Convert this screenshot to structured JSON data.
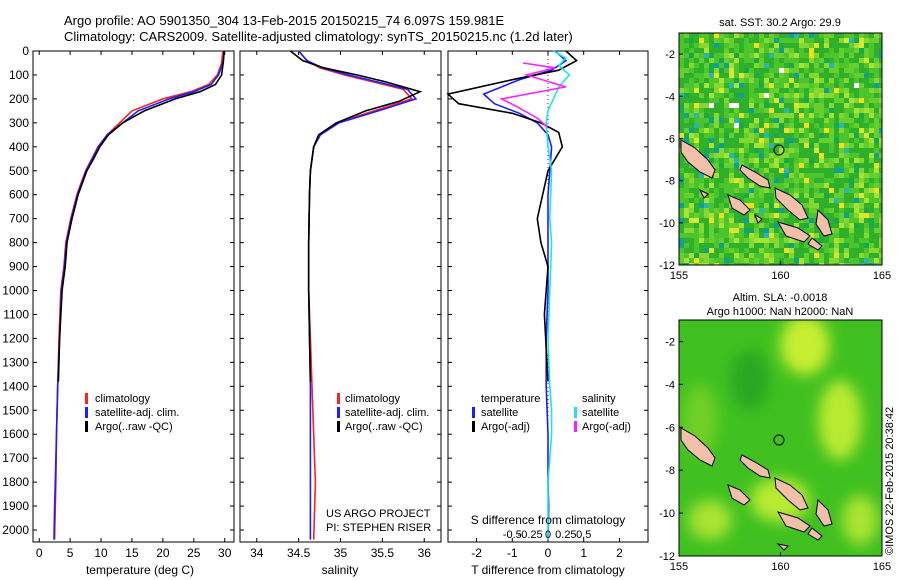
{
  "header": {
    "line1": "Argo profile: AO 5901350_304 13-Feb-2015 20150215_74 6.097S 159.981E",
    "line2": "Climatology: CARS2009. Satellite-adjusted climatology: synTS_20150215.nc (1.2d later)"
  },
  "colors": {
    "climatology": "#ff2020",
    "satellite": "#1c1cff",
    "argo": "#000000",
    "cyan": "#19e6f0",
    "magenta": "#ff20ff",
    "land": "#f2c0a8"
  },
  "chart_data": [
    {
      "id": "temperature",
      "type": "line",
      "xlabel": "temperature (deg C)",
      "ylabel": "",
      "xlim": [
        -1,
        31.5
      ],
      "ylim": [
        2050,
        0
      ],
      "xticks": [
        0,
        5,
        10,
        15,
        20,
        25,
        30
      ],
      "yticks": [
        0,
        100,
        200,
        300,
        400,
        500,
        600,
        700,
        800,
        900,
        1000,
        1100,
        1200,
        1300,
        1400,
        1500,
        1600,
        1700,
        1800,
        1900,
        2000
      ],
      "legend": [
        "climatology",
        "satellite-adj. clim.",
        "Argo(..raw -QC)"
      ],
      "legend_position": "lower-center",
      "series": [
        {
          "name": "climatology",
          "color": "red",
          "x": [
            29.7,
            29.5,
            28.8,
            27.4,
            24.5,
            20,
            15,
            13,
            11,
            9.5,
            8.5,
            7.5,
            6.8,
            6.1,
            5.6,
            5.1,
            4.7,
            4.3,
            4,
            3.5,
            3.2,
            3,
            2.8,
            2.7,
            2.6,
            2.5
          ],
          "y": [
            0,
            50,
            100,
            140,
            170,
            200,
            250,
            300,
            350,
            400,
            450,
            500,
            550,
            600,
            650,
            700,
            750,
            800,
            900,
            1000,
            1200,
            1400,
            1600,
            1800,
            1900,
            2040
          ]
        },
        {
          "name": "satellite",
          "color": "blue",
          "x": [
            29.9,
            29.7,
            29,
            27.8,
            25,
            21,
            16,
            13.5,
            11,
            9.6,
            8.6,
            7.6,
            6.9,
            6.2,
            5.7,
            5.2,
            4.8,
            4.4,
            4.1,
            3.6,
            3.3,
            3,
            2.8,
            2.6,
            2.5,
            2.4
          ],
          "y": [
            0,
            50,
            100,
            140,
            170,
            200,
            250,
            300,
            350,
            400,
            450,
            500,
            550,
            600,
            650,
            700,
            750,
            800,
            900,
            1000,
            1200,
            1400,
            1600,
            1800,
            1900,
            2040
          ]
        },
        {
          "name": "argo",
          "color": "black",
          "x": [
            29.9,
            29.8,
            29.5,
            28.5,
            26,
            22,
            17,
            13.5,
            11.2,
            9.8,
            8.8,
            7.7,
            7,
            6.3,
            5.8,
            5.3,
            4.9,
            4.5,
            4.2,
            3.7,
            3.3,
            3.1
          ],
          "y": [
            0,
            40,
            100,
            140,
            170,
            200,
            250,
            300,
            350,
            400,
            450,
            500,
            550,
            600,
            650,
            700,
            750,
            800,
            900,
            1000,
            1200,
            1380
          ]
        }
      ]
    },
    {
      "id": "salinity",
      "type": "line",
      "xlabel": "salinity",
      "ylabel": "",
      "xlim": [
        33.8,
        36.2
      ],
      "ylim": [
        2050,
        0
      ],
      "xticks": [
        34,
        34.5,
        35,
        35.5,
        36
      ],
      "legend": [
        "climatology",
        "satellite-adj. clim.",
        "Argo(..raw -QC)"
      ],
      "legend_position": "lower-right",
      "annotation": [
        "US ARGO PROJECT",
        "PI: STEPHEN RISER"
      ],
      "series": [
        {
          "name": "climatology",
          "color": "red",
          "x": [
            34.5,
            34.6,
            34.75,
            35.05,
            35.4,
            35.75,
            35.85,
            35.4,
            34.95,
            34.75,
            34.68,
            34.64,
            34.63,
            34.62,
            34.62,
            34.64,
            34.66,
            34.68,
            34.69,
            34.7,
            34.68
          ],
          "y": [
            0,
            40,
            70,
            100,
            130,
            160,
            200,
            250,
            300,
            350,
            400,
            500,
            600,
            800,
            1000,
            1200,
            1400,
            1600,
            1700,
            1800,
            2040
          ]
        },
        {
          "name": "satellite",
          "color": "blue",
          "x": [
            34.5,
            34.6,
            34.78,
            35.1,
            35.45,
            35.8,
            35.9,
            35.45,
            34.98,
            34.76,
            34.68,
            34.64,
            34.63,
            34.62,
            34.62,
            34.63,
            34.64,
            34.64,
            34.64,
            34.64,
            34.64
          ],
          "y": [
            0,
            40,
            70,
            100,
            130,
            160,
            200,
            250,
            300,
            350,
            400,
            500,
            600,
            800,
            1000,
            1200,
            1400,
            1600,
            1700,
            1800,
            2040
          ]
        },
        {
          "name": "argo",
          "color": "black",
          "x": [
            34.4,
            34.55,
            34.8,
            35.2,
            35.55,
            35.95,
            35.7,
            35.3,
            34.95,
            34.74,
            34.68,
            34.64,
            34.63,
            34.62,
            34.62,
            34.64
          ],
          "y": [
            0,
            40,
            70,
            100,
            130,
            170,
            210,
            250,
            300,
            350,
            400,
            500,
            600,
            800,
            1000,
            1380
          ]
        }
      ]
    },
    {
      "id": "difference",
      "type": "line",
      "xlabel": "T difference from climatology",
      "xlabel_top": "S difference from climatology",
      "xlim": [
        -2.8,
        2.8
      ],
      "ylim": [
        2050,
        0
      ],
      "xticks": [
        -2,
        -1,
        0,
        1,
        2
      ],
      "xticks_s": [
        -0.5,
        -0.25,
        0,
        0.25,
        0.5
      ],
      "legend": [
        "temperature",
        "satellite",
        "Argo(-adj)",
        "salinity",
        "satellite",
        "Argo(-adj)"
      ],
      "legend_position": "lower-center",
      "series": [
        {
          "name": "satellite",
          "color": "blue",
          "x": [
            0.2,
            0.5,
            0.1,
            -0.8,
            -1.8,
            -1.5,
            -0.8,
            -0.3,
            0,
            0.1,
            0.05,
            0,
            0,
            0,
            -0.05,
            -0.05,
            0,
            0,
            0.02,
            0
          ],
          "y": [
            0,
            40,
            80,
            120,
            180,
            220,
            260,
            300,
            350,
            400,
            500,
            600,
            800,
            1000,
            1200,
            1400,
            1600,
            1800,
            1900,
            2040
          ]
        },
        {
          "name": "Argo(-adj)",
          "color": "black",
          "x": [
            0.5,
            0.8,
            0.3,
            -1,
            -2.8,
            -2.5,
            -1,
            -0.2,
            0.3,
            0.4,
            0,
            -0.3,
            -0.2,
            0,
            -0.1,
            0
          ],
          "y": [
            0,
            40,
            80,
            120,
            180,
            220,
            260,
            300,
            340,
            400,
            500,
            700,
            800,
            900,
            1100,
            1380
          ]
        },
        {
          "name": "salinity satellite",
          "color": "cyan",
          "x": [
            0.15,
            0.5,
            0.3,
            0.6,
            0.3,
            0,
            -0.05,
            0,
            0.1,
            0.05,
            0.1,
            0.05,
            0,
            0.05,
            0.1,
            0.1,
            0.05,
            0,
            0,
            0
          ],
          "y": [
            0,
            30,
            60,
            100,
            150,
            250,
            300,
            400,
            500,
            700,
            800,
            1000,
            1200,
            1400,
            1500,
            1600,
            1700,
            1800,
            1900,
            2040
          ]
        },
        {
          "name": "salinity Argo(-adj)",
          "color": "magenta",
          "x": [
            -0.7,
            0.2,
            -0.6,
            0.5,
            -1.3,
            -0.9,
            -0.3,
            0
          ],
          "y": [
            50,
            70,
            100,
            150,
            200,
            230,
            280,
            320
          ]
        }
      ]
    },
    {
      "id": "sst-map",
      "type": "heatmap",
      "title": "sat. SST: 30.2  Argo: 29.9",
      "xlim": [
        155,
        165
      ],
      "ylim": [
        -12,
        -1
      ],
      "xticks": [
        155,
        160,
        165
      ],
      "yticks": [
        -2,
        -4,
        -6,
        -8,
        -10,
        -12
      ],
      "marker": {
        "lon": 159.981,
        "lat": -6.097
      }
    },
    {
      "id": "sla-map",
      "type": "heatmap",
      "title": "Altim. SLA: -0.0018",
      "subtitle": "Argo h1000: NaN h2000: NaN",
      "xlim": [
        155,
        165
      ],
      "ylim": [
        -12,
        -1
      ],
      "xticks": [
        155,
        160,
        165
      ],
      "yticks": [
        -2,
        -4,
        -6,
        -8,
        -10,
        -12
      ],
      "marker": {
        "lon": 159.981,
        "lat": -6.097
      }
    }
  ],
  "watermark": "©IMOS 22-Feb-2015 20:38:42"
}
